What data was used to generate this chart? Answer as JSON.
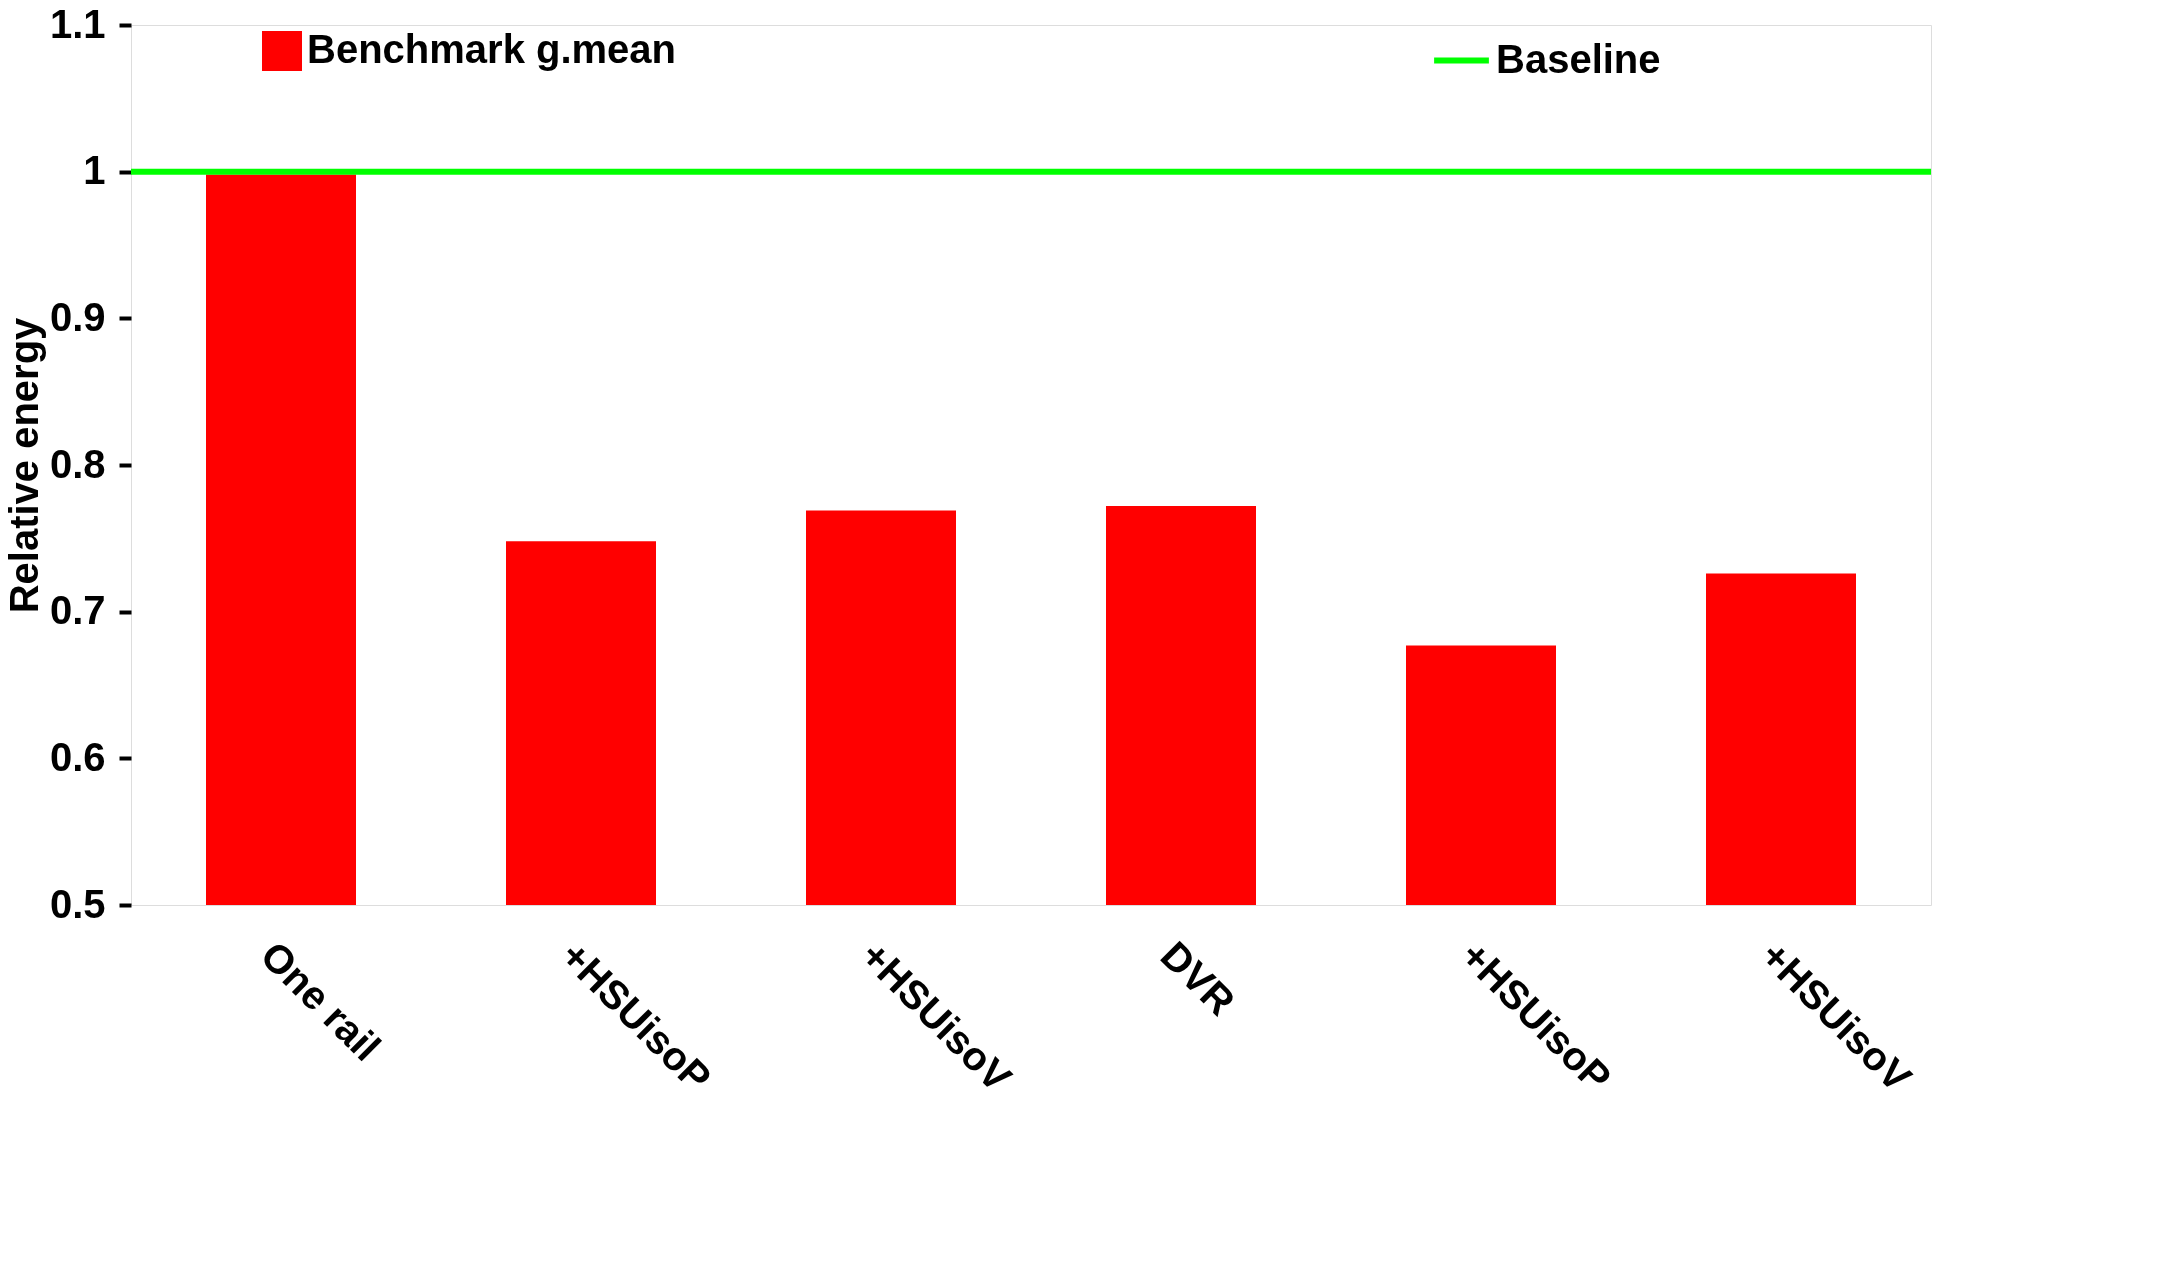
{
  "chart_data": {
    "type": "bar",
    "ylabel": "Relative energy",
    "categories": [
      "One rail",
      "+HSUisoP",
      "+HSUisoV",
      "DVR",
      "+HSUisoP",
      "+HSUisoV"
    ],
    "series": [
      {
        "name": "Benchmark g.mean",
        "color": "#ff0000",
        "values": [
          0.998,
          0.748,
          0.769,
          0.772,
          0.677,
          0.726
        ]
      }
    ],
    "ylim": [
      0.5,
      1.1
    ],
    "yticks": [
      0.5,
      0.6,
      0.7,
      0.8,
      0.9,
      1,
      1.1
    ],
    "ref_lines": [
      {
        "axis": "y",
        "value": 1,
        "label": "Baseline",
        "color": "#00ff00",
        "line_style": "solid"
      }
    ],
    "grid": false,
    "legend": "top"
  }
}
